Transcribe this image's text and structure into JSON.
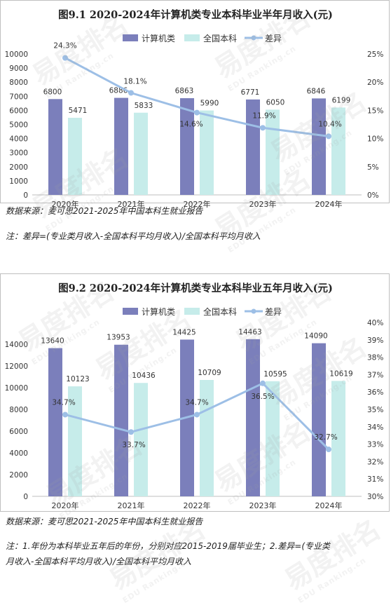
{
  "watermark": {
    "text": "易度排名",
    "sub": "EDU Ranking.cn"
  },
  "colors": {
    "computer": "#7b7fbb",
    "national": "#c6ecea",
    "diff": "#9dbfe6"
  },
  "chart_data": [
    {
      "type": "bar",
      "title": "图9.1 2020-2024年计算机类专业本科毕业半年月收入(元)",
      "categories": [
        "2020年",
        "2021年",
        "2022年",
        "2023年",
        "2024年"
      ],
      "series": [
        {
          "name": "计算机类",
          "type": "bar",
          "axis": "left",
          "values": [
            6800,
            6886,
            6863,
            6771,
            6846
          ],
          "labels": [
            "6800",
            "6886",
            "6863",
            "6771",
            "6846"
          ]
        },
        {
          "name": "全国本科",
          "type": "bar",
          "axis": "left",
          "values": [
            5471,
            5833,
            5990,
            6050,
            6199
          ],
          "labels": [
            "5471",
            "5833",
            "5990",
            "6050",
            "6199"
          ]
        },
        {
          "name": "差异",
          "type": "line",
          "axis": "right",
          "values": [
            24.3,
            18.1,
            14.6,
            11.9,
            10.4
          ],
          "labels": [
            "24.3%",
            "18.1%",
            "14.6%",
            "11.9%",
            "10.4%"
          ]
        }
      ],
      "ylim": [
        0,
        10000
      ],
      "yticks": [
        "0",
        "1000",
        "2000",
        "3000",
        "4000",
        "5000",
        "6000",
        "7000",
        "8000",
        "9000",
        "10000"
      ],
      "y2lim": [
        0,
        25
      ],
      "y2ticks": [
        "0%",
        "5%",
        "10%",
        "15%",
        "20%",
        "25%"
      ],
      "legend": "top-center",
      "grid": false,
      "source": "数据来源：麦可思2021-2025年中国本科生就业报告",
      "notes": [
        "注：差异=(专业类月收入-全国本科平均月收入)/全国本科平均月收入"
      ]
    },
    {
      "type": "bar",
      "title": "图9.2 2020-2024年计算机类专业本科毕业五年月收入(元)",
      "categories": [
        "2020年",
        "2021年",
        "2022年",
        "2023年",
        "2024年"
      ],
      "series": [
        {
          "name": "计算机类",
          "type": "bar",
          "axis": "left",
          "values": [
            13640,
            13953,
            14425,
            14463,
            14090
          ],
          "labels": [
            "13640",
            "13953",
            "14425",
            "14463",
            "14090"
          ]
        },
        {
          "name": "全国本科",
          "type": "bar",
          "axis": "left",
          "values": [
            10123,
            10436,
            10709,
            10595,
            10619
          ],
          "labels": [
            "10123",
            "10436",
            "10709",
            "10595",
            "10619"
          ]
        },
        {
          "name": "差异",
          "type": "line",
          "axis": "right",
          "values": [
            34.7,
            33.7,
            34.7,
            36.5,
            32.7
          ],
          "labels": [
            "34.7%",
            "33.7%",
            "34.7%",
            "36.5%",
            "32.7%"
          ]
        }
      ],
      "ylim": [
        0,
        16000
      ],
      "yticks": [
        "0",
        "2000",
        "4000",
        "6000",
        "8000",
        "10000",
        "12000",
        "14000"
      ],
      "y2lim": [
        30,
        40
      ],
      "y2ticks": [
        "30%",
        "31%",
        "32%",
        "33%",
        "34%",
        "35%",
        "36%",
        "37%",
        "38%",
        "39%",
        "40%"
      ],
      "legend": "top-center",
      "grid": false,
      "source": "数据来源：麦可思2021-2025年中国本科生就业报告",
      "notes": [
        "注：1.年份为本科毕业五年后的年份，分别对应2015-2019届毕业生；2.差异=(专业类",
        "月收入-全国本科平均月收入)/全国本科平均月收入"
      ]
    }
  ]
}
